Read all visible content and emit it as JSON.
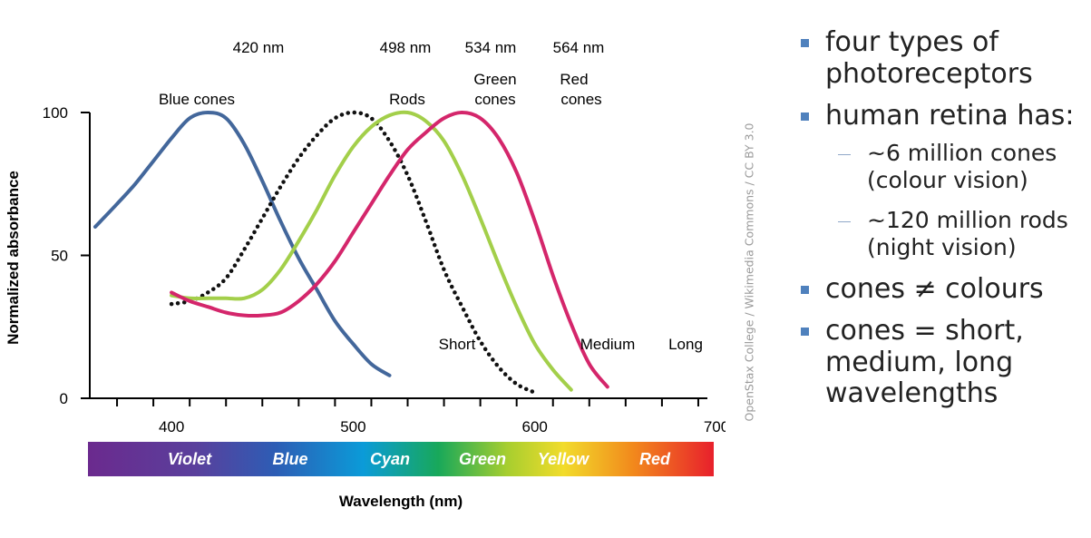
{
  "chart_data": {
    "type": "line",
    "xlabel": "Wavelength (nm)",
    "ylabel": "Normalized absorbance",
    "xlim": [
      355,
      700
    ],
    "ylim": [
      0,
      100
    ],
    "xticks": [
      400,
      500,
      600,
      700
    ],
    "yticks": [
      0,
      50,
      100
    ],
    "series": [
      {
        "name": "Blue cones",
        "short_label": "Short",
        "peak_label": "420 nm",
        "color": "#43679b",
        "style": "solid",
        "x": [
          358,
          370,
          380,
          390,
          400,
          410,
          420,
          430,
          440,
          450,
          460,
          470,
          480,
          490,
          500,
          510,
          520
        ],
        "y": [
          60,
          68,
          75,
          83,
          91,
          98,
          100,
          98,
          89,
          76,
          62,
          49,
          38,
          27,
          19,
          12,
          8
        ]
      },
      {
        "name": "Rods",
        "peak_label": "498 nm",
        "color": "#111111",
        "style": "dotted",
        "x": [
          400,
          410,
          420,
          430,
          440,
          450,
          460,
          470,
          480,
          490,
          500,
          510,
          520,
          530,
          540,
          550,
          560,
          570,
          580,
          590,
          600
        ],
        "y": [
          33,
          34,
          37,
          42,
          52,
          63,
          74,
          84,
          92,
          98,
          100,
          98,
          90,
          78,
          62,
          45,
          32,
          20,
          11,
          5,
          2
        ]
      },
      {
        "name": "Green cones",
        "short_label": "Medium",
        "peak_label": "534 nm",
        "color": "#a3cf4a",
        "style": "solid",
        "x": [
          400,
          410,
          420,
          430,
          440,
          450,
          460,
          470,
          480,
          490,
          500,
          510,
          520,
          530,
          540,
          550,
          560,
          570,
          580,
          590,
          600,
          610,
          620
        ],
        "y": [
          36,
          35,
          35,
          35,
          35,
          38,
          45,
          55,
          66,
          78,
          88,
          95,
          99,
          100,
          97,
          90,
          78,
          63,
          47,
          32,
          19,
          10,
          3
        ]
      },
      {
        "name": "Red cones",
        "short_label": "Long",
        "peak_label": "564 nm",
        "color": "#d4266b",
        "style": "solid",
        "x": [
          400,
          410,
          420,
          430,
          440,
          450,
          460,
          470,
          480,
          490,
          500,
          510,
          520,
          530,
          540,
          550,
          560,
          570,
          580,
          590,
          600,
          610,
          620,
          630,
          640
        ],
        "y": [
          37,
          34,
          32,
          30,
          29,
          29,
          30,
          34,
          40,
          48,
          58,
          68,
          78,
          87,
          93,
          98,
          100,
          98,
          91,
          79,
          62,
          43,
          26,
          12,
          4
        ]
      }
    ],
    "spectrum_bands": [
      "Violet",
      "Blue",
      "Cyan",
      "Green",
      "Yellow",
      "Red"
    ]
  },
  "credit": "OpenStax College / Wikimedia Commons / CC BY 3.0",
  "bullets": {
    "item1": "four types of photoreceptors",
    "item2": "human retina has:",
    "item2_sub1": "~6 million cones (colour vision)",
    "item2_sub2": "~120 million rods (night vision)",
    "item3": "cones ≠ colours",
    "item4": "cones = short, medium, long wavelengths",
    "bullet_color": "#4f81bd",
    "sub_dash_color": "#8fa8c8"
  }
}
